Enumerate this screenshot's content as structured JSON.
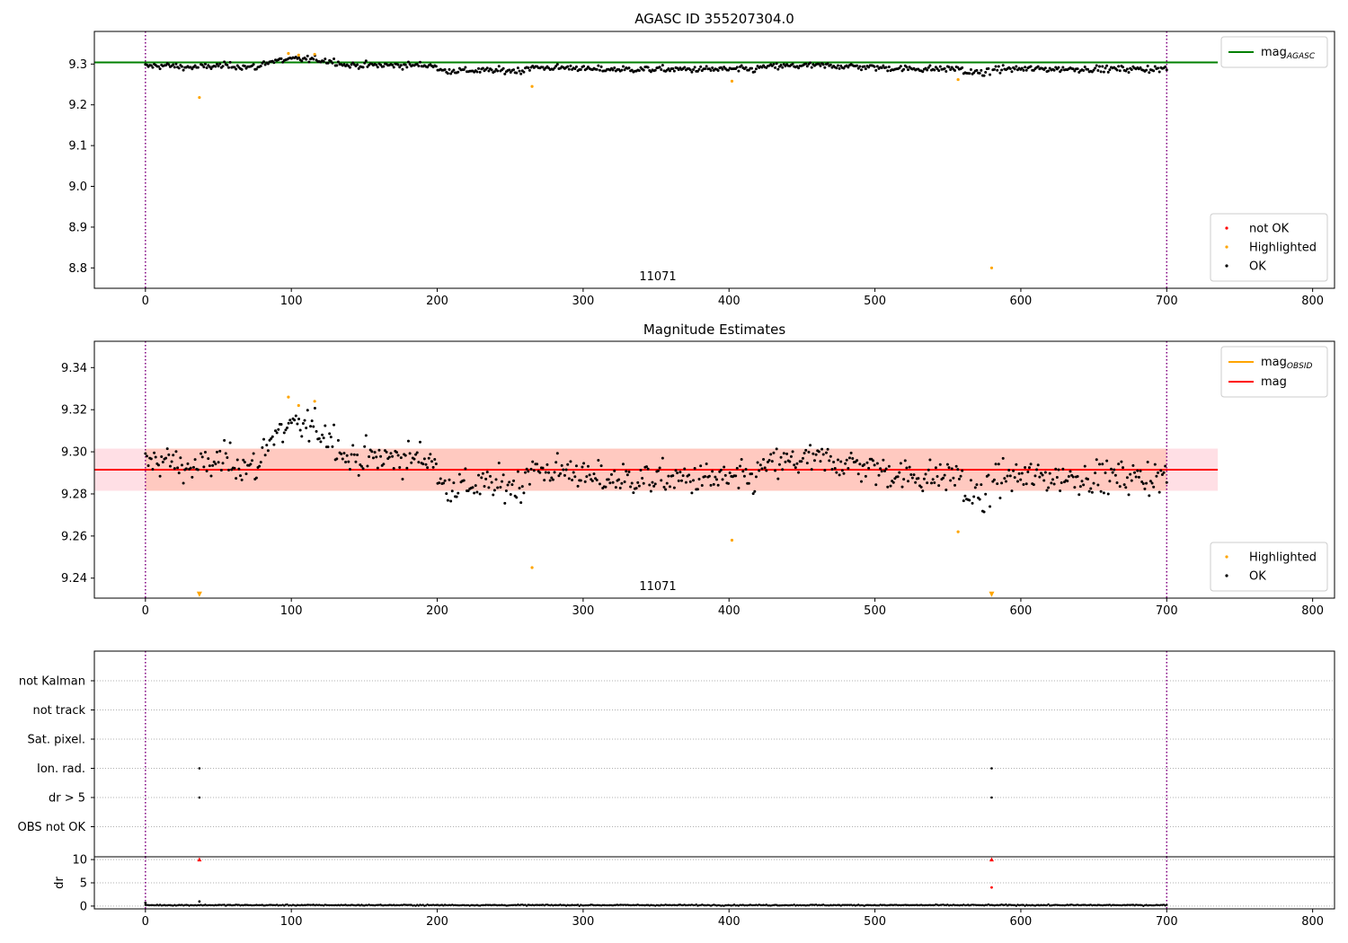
{
  "chart_data": [
    {
      "id": "p1",
      "type": "scatter",
      "title": "AGASC ID 355207304.0",
      "xlim": [
        -35,
        815
      ],
      "ylim": [
        8.75,
        9.38
      ],
      "xticks": [
        0,
        100,
        200,
        300,
        400,
        500,
        600,
        700,
        800
      ],
      "yticks": [
        8.8,
        8.9,
        9.0,
        9.1,
        9.2,
        9.3
      ],
      "ytick_labels": [
        "8.8",
        "8.9",
        "9.0",
        "9.1",
        "9.2",
        "9.3"
      ],
      "grid": false,
      "obsid_label": "11071",
      "obsid_label_x": 350,
      "vlines": [
        0,
        700
      ],
      "vline_color": "#800080",
      "hline": {
        "y": 9.304,
        "x0": -35,
        "x1": 735,
        "color": "#008000"
      },
      "ok_series": {
        "name": "OK",
        "color": "#000000",
        "x_start": 0,
        "x_end": 700,
        "n": 700
      },
      "highlighted": {
        "name": "Highlighted",
        "color": "#ffa500",
        "x": [
          37,
          98,
          105,
          116,
          265,
          402,
          557,
          580
        ],
        "y": [
          9.218,
          9.326,
          9.322,
          9.324,
          9.245,
          9.258,
          9.262,
          8.8
        ]
      },
      "not_ok": {
        "name": "not OK",
        "color": "#ff0000",
        "x": [],
        "y": []
      },
      "legend_lines": [
        {
          "label": "mag",
          "sub": "AGASC",
          "color": "#008000"
        }
      ],
      "legend_points": [
        {
          "label": "not OK",
          "color": "#ff0000"
        },
        {
          "label": "Highlighted",
          "color": "#ffa500"
        },
        {
          "label": "OK",
          "color": "#000000"
        }
      ],
      "legend_lines_placement": "upper right",
      "legend_points_placement": "lower right"
    },
    {
      "id": "p2",
      "type": "scatter",
      "title": "Magnitude Estimates",
      "xlim": [
        -35,
        815
      ],
      "ylim": [
        9.2305,
        9.3525
      ],
      "xticks": [
        0,
        100,
        200,
        300,
        400,
        500,
        600,
        700,
        800
      ],
      "yticks": [
        9.24,
        9.26,
        9.28,
        9.3,
        9.32,
        9.34
      ],
      "ytick_labels": [
        "9.24",
        "9.26",
        "9.28",
        "9.30",
        "9.32",
        "9.34"
      ],
      "grid": false,
      "obsid_label": "11071",
      "obsid_label_x": 350,
      "vlines": [
        0,
        700
      ],
      "vline_color": "#800080",
      "mean_line": {
        "y": 9.2915,
        "x0": -35,
        "x1": 735,
        "color": "#ff0000"
      },
      "band_pink": {
        "y0": 9.2815,
        "y1": 9.3015,
        "x0": -35,
        "x1": 735,
        "color": "#ffc0cb"
      },
      "band_orange": {
        "y0": 9.2815,
        "y1": 9.3015,
        "x0": 0,
        "x1": 700,
        "color": "#ffa07a"
      },
      "ok_series": {
        "name": "OK",
        "color": "#000000",
        "x_start": 0,
        "x_end": 700,
        "n": 700
      },
      "highlighted": {
        "name": "Highlighted",
        "color": "#ffa500",
        "x": [
          98,
          105,
          116,
          265,
          402,
          557
        ],
        "y": [
          9.326,
          9.322,
          9.324,
          9.245,
          9.258,
          9.262
        ]
      },
      "offscale_markers": {
        "x": [
          37,
          580
        ],
        "y": 9.2323,
        "color": "#ffa500"
      },
      "legend_lines": [
        {
          "label": "mag",
          "sub": "OBSID",
          "color": "#ffa500"
        },
        {
          "label": "mag",
          "sub": "",
          "color": "#ff0000"
        }
      ],
      "legend_points": [
        {
          "label": "Highlighted",
          "color": "#ffa500"
        },
        {
          "label": "OK",
          "color": "#000000"
        }
      ],
      "legend_lines_placement": "upper right",
      "legend_points_placement": "lower right"
    },
    {
      "id": "p3",
      "type": "scatter",
      "xlim": [
        -35,
        815
      ],
      "flag_rows": [
        "not Kalman",
        "not track",
        "Sat. pixel.",
        "Ion. rad.",
        "dr > 5",
        "OBS not OK"
      ],
      "flag_points": [
        {
          "row": "Ion. rad.",
          "x": [
            37,
            580
          ]
        },
        {
          "row": "dr > 5",
          "x": [
            37,
            580
          ]
        }
      ],
      "vlines": [
        0,
        700
      ],
      "vline_color": "#800080",
      "grid": "dotted rows"
    },
    {
      "id": "p4",
      "type": "scatter",
      "ylabel": "dr",
      "xlim": [
        -35,
        815
      ],
      "ylim": [
        -0.6,
        10.6
      ],
      "xticks": [
        0,
        100,
        200,
        300,
        400,
        500,
        600,
        700,
        800
      ],
      "yticks": [
        0,
        5,
        10
      ],
      "ytick_labels": [
        "0",
        "5",
        "10"
      ],
      "grid": "dotted horizontal",
      "vlines": [
        0,
        700
      ],
      "vline_color": "#800080",
      "dr_series": {
        "name": "OK",
        "color": "#000000",
        "x_start": 0,
        "x_end": 700,
        "n": 700,
        "typical": 0.2
      },
      "dr_extra": {
        "x": [
          0,
          37,
          580
        ],
        "y": [
          0.7,
          1.0,
          4.0
        ],
        "color": [
          "#000000",
          "#000000",
          "#ff0000"
        ]
      },
      "dr_clipped": {
        "x": [
          37,
          580
        ],
        "y": 10,
        "color": "#ff0000"
      }
    }
  ]
}
